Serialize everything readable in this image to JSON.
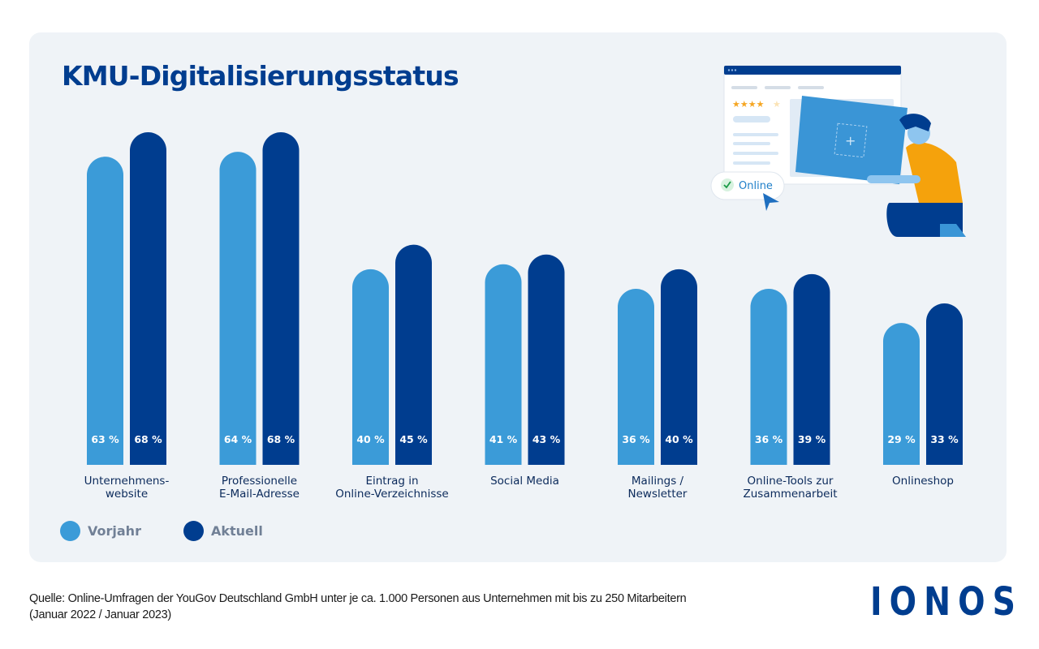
{
  "title": "KMU-Digitalisierungsstatus",
  "chart_data": {
    "type": "bar",
    "title": "KMU-Digitalisierungsstatus",
    "xlabel": "",
    "ylabel": "",
    "ylim": [
      0,
      68
    ],
    "grid": false,
    "unit": "%",
    "categories": [
      [
        "Unternehmens-",
        "website"
      ],
      [
        "Professionelle",
        "E-Mail-Adresse"
      ],
      [
        "Eintrag in",
        "Online-Verzeichnisse"
      ],
      [
        "Social Media"
      ],
      [
        "Mailings /",
        "Newsletter"
      ],
      [
        "Online-Tools zur",
        "Zusammenarbeit"
      ],
      [
        "Onlineshop"
      ]
    ],
    "series": [
      {
        "name": "Vorjahr",
        "color": "#3b9bd8",
        "values": [
          63,
          64,
          40,
          41,
          36,
          36,
          29
        ]
      },
      {
        "name": "Aktuell",
        "color": "#003d8f",
        "values": [
          68,
          68,
          45,
          43,
          40,
          39,
          33
        ]
      }
    ],
    "value_labels": [
      [
        "63 %",
        "64 %",
        "40 %",
        "41 %",
        "36 %",
        "36 %",
        "29 %"
      ],
      [
        "68 %",
        "68 %",
        "45 %",
        "43 %",
        "40 %",
        "39 %",
        "33 %"
      ]
    ],
    "legend_position": "bottom-left"
  },
  "legend": [
    {
      "label": "Vorjahr",
      "color": "#3b9bd8"
    },
    {
      "label": "Aktuell",
      "color": "#003d8f"
    }
  ],
  "illustration": {
    "badge_label": "Online",
    "rating_stars": 4,
    "rating_max": 5
  },
  "source": {
    "line1": "Quelle: Online-Umfragen der YouGov Deutschland GmbH unter je ca. 1.000 Personen aus Unternehmen mit bis zu 250 Mitarbeitern",
    "line2": "(Januar 2022 / Januar 2023)"
  },
  "logo": "IONOS"
}
